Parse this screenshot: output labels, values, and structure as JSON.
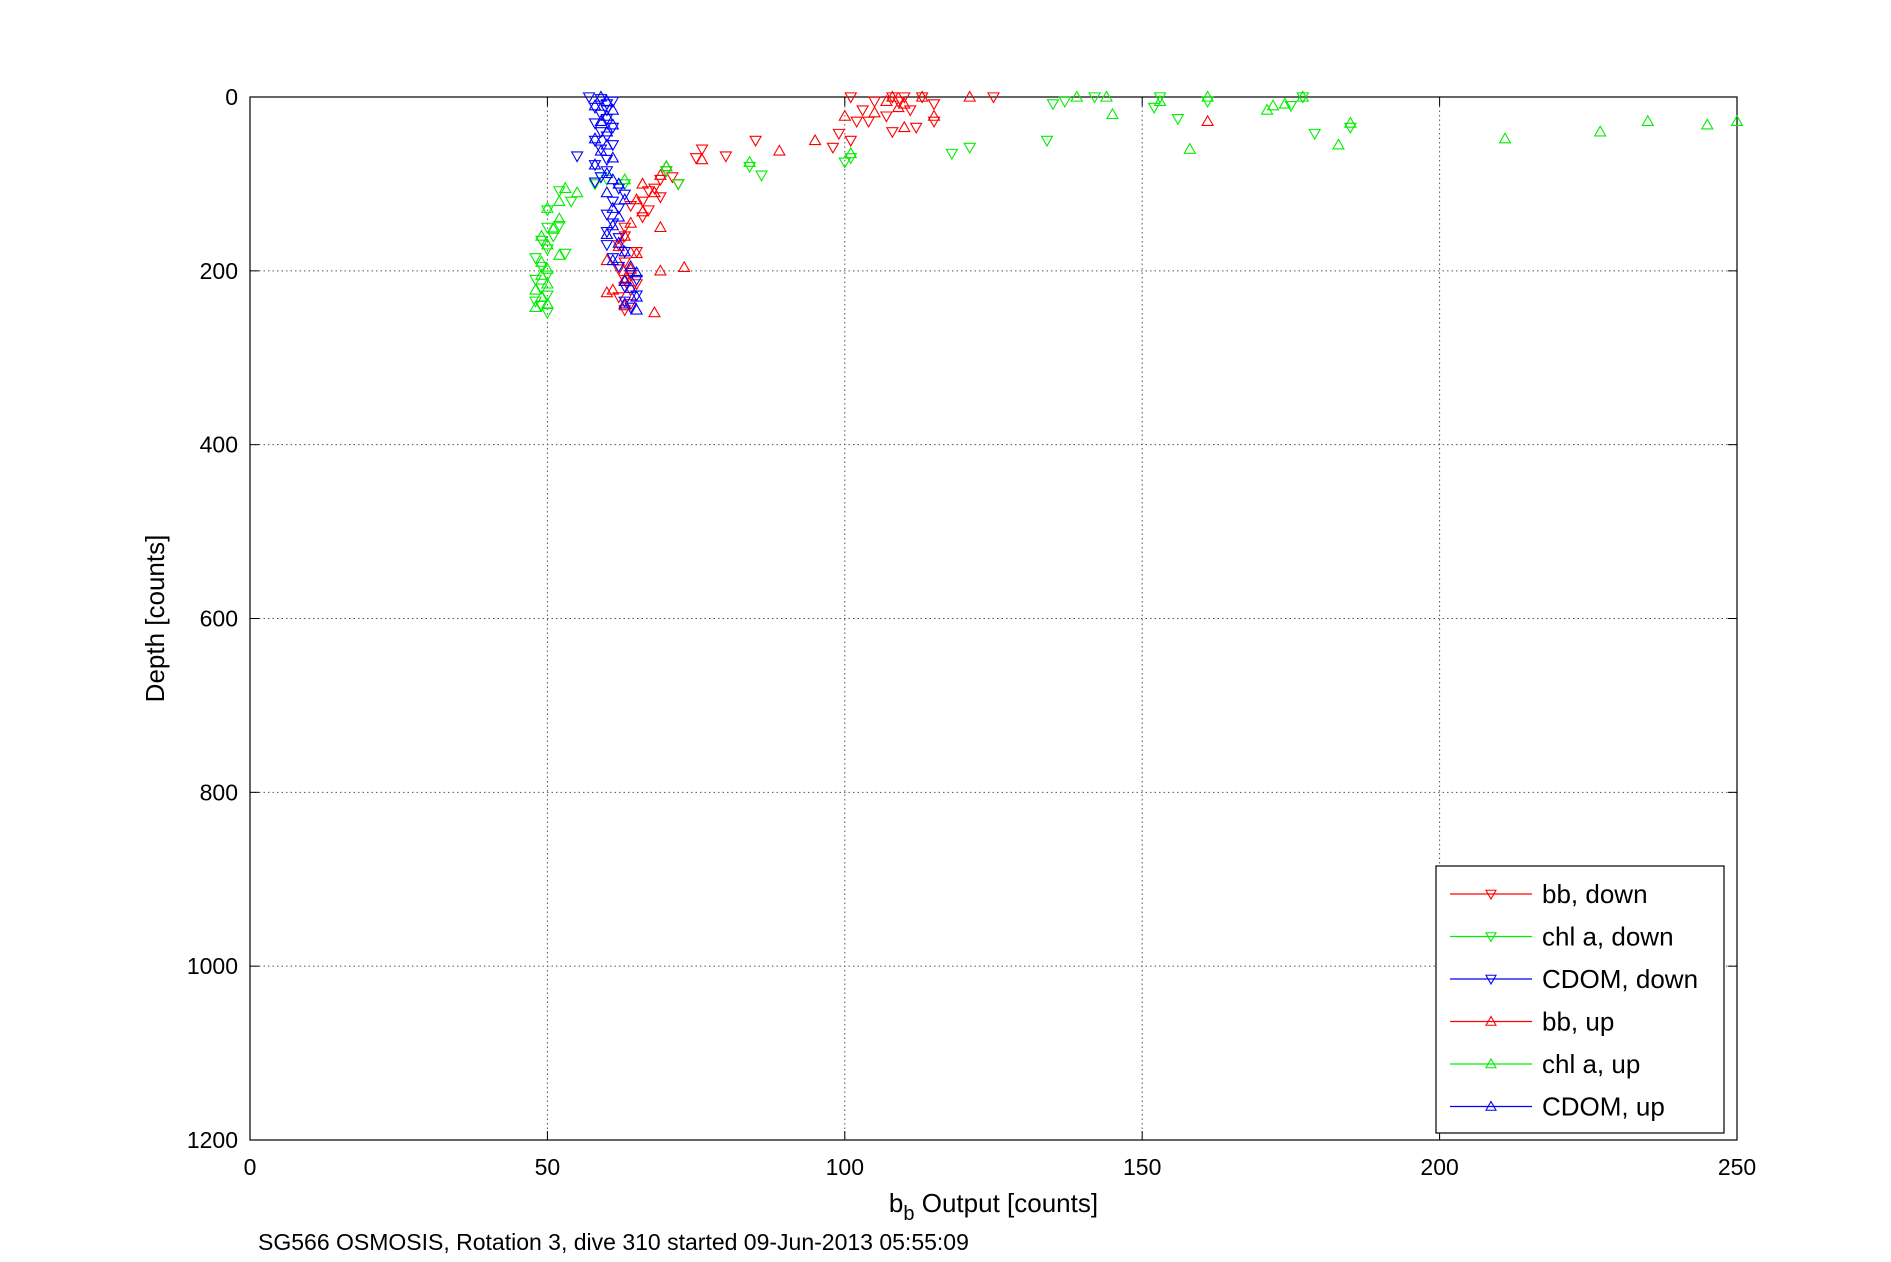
{
  "chart_data": {
    "type": "scatter",
    "xlabel_main": "b",
    "xlabel_sub": "b",
    "xlabel_rest": " Output [counts]",
    "ylabel": "Depth [counts]",
    "caption": "SG566 OSMOSIS, Rotation 3, dive 310 started 09-Jun-2013 05:55:09",
    "xlim": [
      0,
      250
    ],
    "ylim": [
      0,
      1200
    ],
    "y_reversed": true,
    "grid": true,
    "legend_position": "bottom-right",
    "xticks": [
      0,
      50,
      100,
      150,
      200,
      250
    ],
    "yticks": [
      0,
      200,
      400,
      600,
      800,
      1000,
      1200
    ],
    "series": [
      {
        "name": "bb, down",
        "color": "#ff0000",
        "marker": "triangle-down",
        "points": [
          [
            101,
            0
          ],
          [
            108,
            0
          ],
          [
            110,
            0
          ],
          [
            113,
            0
          ],
          [
            125,
            0
          ],
          [
            105,
            5
          ],
          [
            109,
            5
          ],
          [
            115,
            8
          ],
          [
            103,
            15
          ],
          [
            111,
            15
          ],
          [
            107,
            22
          ],
          [
            102,
            28
          ],
          [
            104,
            28
          ],
          [
            115,
            28
          ],
          [
            112,
            35
          ],
          [
            99,
            42
          ],
          [
            108,
            40
          ],
          [
            101,
            50
          ],
          [
            98,
            58
          ],
          [
            85,
            50
          ],
          [
            76,
            60
          ],
          [
            75,
            70
          ],
          [
            80,
            68
          ],
          [
            70,
            85
          ],
          [
            71,
            92
          ],
          [
            69,
            95
          ],
          [
            68,
            105
          ],
          [
            72,
            100
          ],
          [
            67,
            108
          ],
          [
            69,
            115
          ],
          [
            66,
            120
          ],
          [
            64,
            125
          ],
          [
            67,
            130
          ],
          [
            66,
            138
          ],
          [
            63,
            150
          ],
          [
            63,
            160
          ],
          [
            62,
            170
          ],
          [
            65,
            178
          ],
          [
            63,
            190
          ],
          [
            62,
            198
          ],
          [
            64,
            205
          ],
          [
            63,
            210
          ],
          [
            65,
            215
          ],
          [
            64,
            222
          ],
          [
            62,
            230
          ],
          [
            64,
            238
          ],
          [
            63,
            245
          ]
        ]
      },
      {
        "name": "chl a, down",
        "color": "#00ee00",
        "marker": "triangle-down",
        "points": [
          [
            142,
            0
          ],
          [
            153,
            0
          ],
          [
            177,
            0
          ],
          [
            137,
            5
          ],
          [
            135,
            8
          ],
          [
            152,
            12
          ],
          [
            161,
            5
          ],
          [
            156,
            25
          ],
          [
            175,
            10
          ],
          [
            179,
            42
          ],
          [
            185,
            35
          ],
          [
            134,
            50
          ],
          [
            121,
            58
          ],
          [
            118,
            65
          ],
          [
            101,
            70
          ],
          [
            100,
            75
          ],
          [
            86,
            90
          ],
          [
            84,
            80
          ],
          [
            72,
            100
          ],
          [
            70,
            85
          ],
          [
            63,
            100
          ],
          [
            60,
            95
          ],
          [
            59,
            92
          ],
          [
            58,
            100
          ],
          [
            52,
            108
          ],
          [
            54,
            120
          ],
          [
            50,
            130
          ],
          [
            52,
            148
          ],
          [
            50,
            150
          ],
          [
            51,
            160
          ],
          [
            49,
            165
          ],
          [
            50,
            175
          ],
          [
            53,
            180
          ],
          [
            48,
            185
          ],
          [
            49,
            195
          ],
          [
            50,
            205
          ],
          [
            48,
            210
          ],
          [
            49,
            220
          ],
          [
            50,
            228
          ],
          [
            48,
            235
          ],
          [
            49,
            240
          ],
          [
            50,
            248
          ]
        ]
      },
      {
        "name": "CDOM, down",
        "color": "#0000ff",
        "marker": "triangle-down",
        "points": [
          [
            57,
            0
          ],
          [
            59,
            2
          ],
          [
            61,
            5
          ],
          [
            60,
            8
          ],
          [
            58,
            12
          ],
          [
            60,
            15
          ],
          [
            59,
            20
          ],
          [
            60,
            25
          ],
          [
            58,
            30
          ],
          [
            61,
            35
          ],
          [
            59,
            40
          ],
          [
            60,
            45
          ],
          [
            58,
            50
          ],
          [
            61,
            55
          ],
          [
            59,
            60
          ],
          [
            55,
            68
          ],
          [
            60,
            72
          ],
          [
            58,
            78
          ],
          [
            60,
            85
          ],
          [
            59,
            92
          ],
          [
            58,
            98
          ],
          [
            62,
            105
          ],
          [
            63,
            112
          ],
          [
            61,
            120
          ],
          [
            62,
            128
          ],
          [
            60,
            135
          ],
          [
            61,
            145
          ],
          [
            60,
            155
          ],
          [
            62,
            162
          ],
          [
            60,
            170
          ],
          [
            63,
            178
          ],
          [
            61,
            185
          ],
          [
            62,
            195
          ],
          [
            64,
            202
          ],
          [
            65,
            210
          ],
          [
            63,
            218
          ],
          [
            65,
            228
          ],
          [
            63,
            235
          ],
          [
            64,
            242
          ]
        ]
      },
      {
        "name": "bb, up",
        "color": "#ff0000",
        "marker": "triangle-up",
        "points": [
          [
            108,
            0
          ],
          [
            113,
            0
          ],
          [
            121,
            0
          ],
          [
            107,
            5
          ],
          [
            110,
            8
          ],
          [
            109,
            12
          ],
          [
            105,
            18
          ],
          [
            100,
            22
          ],
          [
            115,
            22
          ],
          [
            161,
            28
          ],
          [
            110,
            35
          ],
          [
            95,
            50
          ],
          [
            89,
            62
          ],
          [
            76,
            72
          ],
          [
            70,
            80
          ],
          [
            69,
            90
          ],
          [
            66,
            100
          ],
          [
            68,
            110
          ],
          [
            65,
            118
          ],
          [
            66,
            132
          ],
          [
            64,
            145
          ],
          [
            69,
            150
          ],
          [
            63,
            160
          ],
          [
            62,
            172
          ],
          [
            65,
            180
          ],
          [
            60,
            188
          ],
          [
            64,
            198
          ],
          [
            69,
            200
          ],
          [
            73,
            196
          ],
          [
            63,
            210
          ],
          [
            61,
            222
          ],
          [
            60,
            225
          ],
          [
            63,
            240
          ],
          [
            68,
            248
          ]
        ]
      },
      {
        "name": "chl a, up",
        "color": "#00ee00",
        "marker": "triangle-up",
        "points": [
          [
            139,
            0
          ],
          [
            144,
            0
          ],
          [
            177,
            0
          ],
          [
            153,
            5
          ],
          [
            161,
            0
          ],
          [
            172,
            10
          ],
          [
            174,
            8
          ],
          [
            171,
            15
          ],
          [
            145,
            20
          ],
          [
            158,
            60
          ],
          [
            183,
            55
          ],
          [
            185,
            30
          ],
          [
            211,
            48
          ],
          [
            227,
            40
          ],
          [
            235,
            28
          ],
          [
            245,
            32
          ],
          [
            250,
            28
          ],
          [
            101,
            65
          ],
          [
            84,
            75
          ],
          [
            70,
            80
          ],
          [
            63,
            95
          ],
          [
            55,
            110
          ],
          [
            53,
            105
          ],
          [
            52,
            120
          ],
          [
            50,
            128
          ],
          [
            52,
            140
          ],
          [
            51,
            152
          ],
          [
            49,
            160
          ],
          [
            50,
            170
          ],
          [
            52,
            182
          ],
          [
            49,
            190
          ],
          [
            50,
            198
          ],
          [
            49,
            205
          ],
          [
            50,
            215
          ],
          [
            48,
            222
          ],
          [
            49,
            230
          ],
          [
            50,
            238
          ],
          [
            48,
            242
          ]
        ]
      },
      {
        "name": "CDOM, up",
        "color": "#0000ff",
        "marker": "triangle-up",
        "points": [
          [
            59,
            0
          ],
          [
            60,
            5
          ],
          [
            58,
            10
          ],
          [
            61,
            15
          ],
          [
            60,
            22
          ],
          [
            59,
            28
          ],
          [
            61,
            32
          ],
          [
            60,
            40
          ],
          [
            58,
            48
          ],
          [
            60,
            55
          ],
          [
            59,
            62
          ],
          [
            61,
            70
          ],
          [
            58,
            78
          ],
          [
            60,
            88
          ],
          [
            61,
            95
          ],
          [
            62,
            100
          ],
          [
            60,
            110
          ],
          [
            63,
            118
          ],
          [
            61,
            128
          ],
          [
            62,
            138
          ],
          [
            61,
            148
          ],
          [
            60,
            158
          ],
          [
            62,
            168
          ],
          [
            63,
            178
          ],
          [
            61,
            188
          ],
          [
            64,
            195
          ],
          [
            65,
            202
          ],
          [
            63,
            212
          ],
          [
            64,
            220
          ],
          [
            65,
            230
          ],
          [
            63,
            238
          ],
          [
            65,
            245
          ]
        ]
      }
    ]
  }
}
